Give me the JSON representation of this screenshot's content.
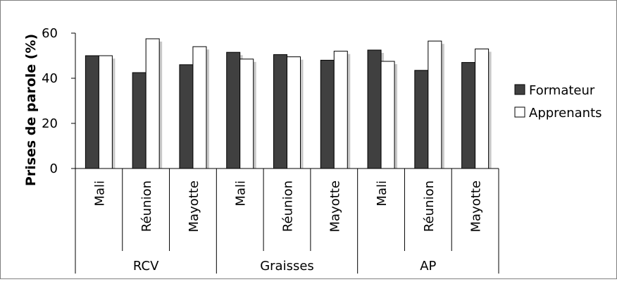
{
  "chart_data": {
    "type": "bar",
    "ylabel": "Prises de parole (%)",
    "ylim": [
      0,
      60
    ],
    "yticks": [
      0,
      20,
      40,
      60
    ],
    "grid": false,
    "legend_position": "right",
    "groups": [
      "RCV",
      "Graisses",
      "AP"
    ],
    "categories": [
      "Mali",
      "Réunion",
      "Mayotte",
      "Mali",
      "Réunion",
      "Mayotte",
      "Mali",
      "Réunion",
      "Mayotte"
    ],
    "series": [
      {
        "name": "Formateur",
        "color": "#404040",
        "values": [
          50,
          42.5,
          46,
          51.5,
          50.5,
          48,
          52.5,
          43.5,
          47
        ]
      },
      {
        "name": "Apprenants",
        "color": "#ffffff",
        "values": [
          50,
          57.5,
          54,
          48.5,
          49.5,
          52,
          47.5,
          56.5,
          53
        ]
      }
    ]
  }
}
